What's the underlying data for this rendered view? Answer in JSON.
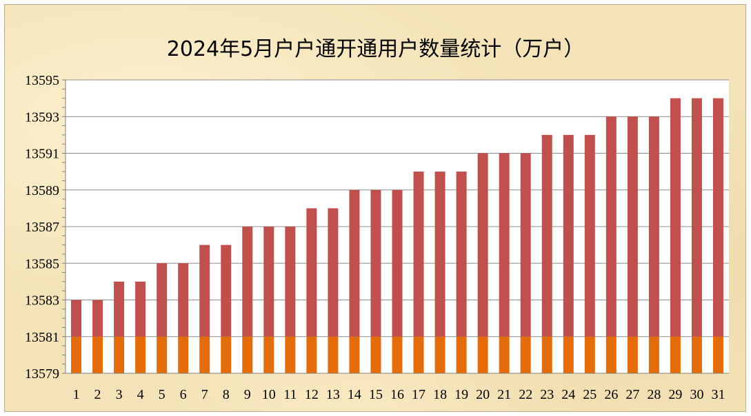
{
  "chart_data": {
    "type": "bar",
    "title": "2024年5月户户通开通用户数量统计（万户）",
    "xlabel": "",
    "ylabel": "",
    "categories": [
      "1",
      "2",
      "3",
      "4",
      "5",
      "6",
      "7",
      "8",
      "9",
      "10",
      "11",
      "12",
      "13",
      "14",
      "15",
      "16",
      "17",
      "18",
      "19",
      "20",
      "21",
      "22",
      "23",
      "24",
      "25",
      "26",
      "27",
      "28",
      "29",
      "30",
      "31"
    ],
    "values": [
      13583,
      13583,
      13584,
      13584,
      13585,
      13585,
      13586,
      13586,
      13587,
      13587,
      13587,
      13588,
      13588,
      13589,
      13589,
      13589,
      13590,
      13590,
      13590,
      13591,
      13591,
      13591,
      13592,
      13592,
      13592,
      13593,
      13593,
      13593,
      13594,
      13594,
      13594
    ],
    "ylim": [
      13579,
      13595
    ],
    "yticks": [
      "13579",
      "13581",
      "13583",
      "13585",
      "13587",
      "13589",
      "13591",
      "13593",
      "13595"
    ],
    "base_segment_top": 13581,
    "colors": {
      "bar_top": "#c0504d",
      "bar_base": "#e46c0a",
      "plot_bg": "#ffffff",
      "grid": "#8c8c8c"
    },
    "grid": true,
    "legend": "none"
  }
}
